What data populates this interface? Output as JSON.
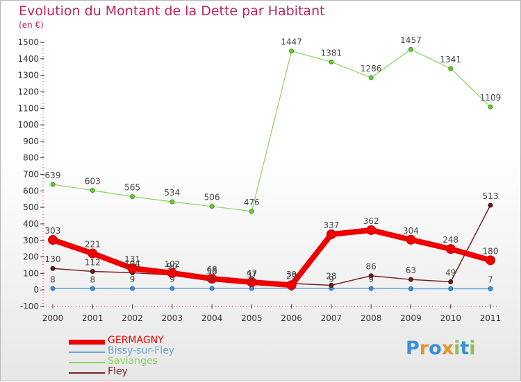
{
  "header": {
    "title": "Evolution du Montant de la Dette par Habitant",
    "unit": "(en €)"
  },
  "logo": {
    "text": "Proxiti",
    "letters": [
      "P",
      "r",
      "o",
      "x",
      "i",
      "t",
      "i"
    ],
    "colors": [
      "#3a8fd8",
      "#e8922c",
      "#3a8fd8",
      "#e8922c",
      "#8bc34a",
      "#3a8fd8",
      "#8bc34a"
    ]
  },
  "colors": {
    "title": "#c0245c",
    "GERMAGNY": "#ee0000",
    "Bissy-sur-Fley": "#6aa6d6",
    "Savianges": "#88d45c",
    "Fley": "#7a2020",
    "axis_text": "#333333",
    "value_text": "#444444"
  },
  "chart_data": {
    "type": "line",
    "title": "Evolution du Montant de la Dette par Habitant",
    "ylabel": "(en €)",
    "xlabel": "",
    "x": [
      "2000",
      "2001",
      "2002",
      "2003",
      "2004",
      "2005",
      "2006",
      "2007",
      "2008",
      "2009",
      "2010",
      "2011"
    ],
    "ylim": [
      -100,
      1500
    ],
    "yticks": [
      -100,
      0,
      100,
      200,
      300,
      400,
      500,
      600,
      700,
      800,
      900,
      1000,
      1100,
      1200,
      1300,
      1400,
      1500
    ],
    "grid": false,
    "legend": "bottom-left",
    "series": [
      {
        "name": "GERMAGNY",
        "values": [
          303,
          221,
          131,
          102,
          68,
          47,
          29,
          337,
          362,
          304,
          248,
          180
        ],
        "show_labels": [
          true,
          true,
          true,
          true,
          true,
          true,
          true,
          true,
          true,
          true,
          true,
          true
        ]
      },
      {
        "name": "Bissy-sur-Fley",
        "values": [
          8,
          8,
          9,
          9,
          9,
          9,
          9,
          9,
          9,
          7,
          7,
          7
        ],
        "show_labels": [
          true,
          true,
          true,
          true,
          true,
          true,
          false,
          true,
          true,
          false,
          false,
          true
        ]
      },
      {
        "name": "Savianges",
        "values": [
          639,
          603,
          565,
          534,
          506,
          476,
          1447,
          1381,
          1286,
          1457,
          1341,
          1109
        ],
        "show_labels": [
          true,
          true,
          true,
          true,
          true,
          true,
          true,
          true,
          true,
          true,
          true,
          true
        ]
      },
      {
        "name": "Fley",
        "values": [
          130,
          112,
          104,
          90,
          58,
          37,
          39,
          28,
          86,
          63,
          49,
          513
        ],
        "show_labels": [
          true,
          true,
          true,
          true,
          true,
          true,
          true,
          true,
          true,
          true,
          true,
          true
        ]
      }
    ]
  }
}
